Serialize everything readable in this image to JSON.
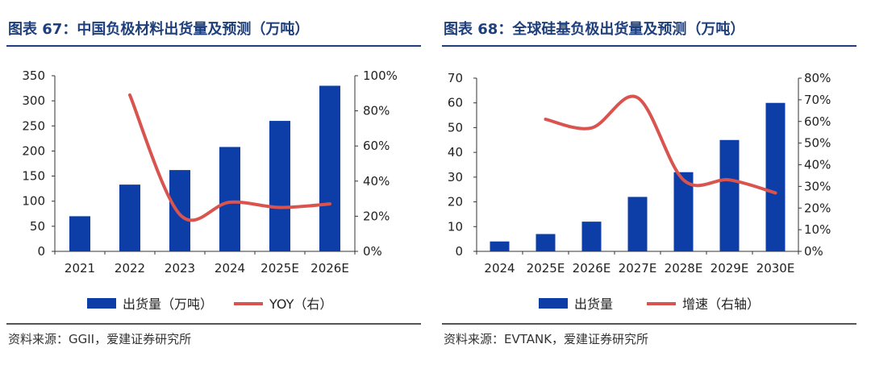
{
  "colors": {
    "bar": "#0d3ea8",
    "line": "#d9534f",
    "title": "#1f3f7a"
  },
  "chart_data": [
    {
      "type": "bar",
      "title": "图表 67：中国负极材料出货量及预测（万吨）",
      "categories": [
        "2021",
        "2022",
        "2023",
        "2024",
        "2025E",
        "2026E"
      ],
      "series": [
        {
          "name": "出货量（万吨）",
          "type": "bar",
          "axis": "left",
          "values": [
            70,
            133,
            162,
            208,
            260,
            330
          ]
        },
        {
          "name": "YOY（右）",
          "type": "line",
          "axis": "right",
          "values": [
            null,
            89,
            21,
            28,
            25,
            27
          ]
        }
      ],
      "yticks_left": [
        "0",
        "50",
        "100",
        "150",
        "200",
        "250",
        "300",
        "350"
      ],
      "yticks_right": [
        "0%",
        "20%",
        "40%",
        "60%",
        "80%",
        "100%"
      ],
      "ylim_left": [
        0,
        350
      ],
      "ylim_right": [
        0,
        100
      ],
      "legend": [
        "出货量（万吨）",
        "YOY（右）"
      ],
      "source": "资料来源：GGII，爱建证券研究所"
    },
    {
      "type": "bar",
      "title": "图表 68：全球硅基负极出货量及预测（万吨）",
      "categories": [
        "2024",
        "2025E",
        "2026E",
        "2027E",
        "2028E",
        "2029E",
        "2030E"
      ],
      "series": [
        {
          "name": "出货量",
          "type": "bar",
          "axis": "left",
          "values": [
            4,
            7,
            12,
            22,
            32,
            45,
            60
          ]
        },
        {
          "name": "增速（右轴）",
          "type": "line",
          "axis": "right",
          "values": [
            null,
            61,
            57,
            71,
            33,
            33,
            27
          ]
        }
      ],
      "yticks_left": [
        "0",
        "10",
        "20",
        "30",
        "40",
        "50",
        "60",
        "70"
      ],
      "yticks_right": [
        "0%",
        "10%",
        "20%",
        "30%",
        "40%",
        "50%",
        "60%",
        "70%",
        "80%"
      ],
      "ylim_left": [
        0,
        70
      ],
      "ylim_right": [
        0,
        80
      ],
      "legend": [
        "出货量",
        "增速（右轴）"
      ],
      "source": "资料来源：EVTANK，爱建证券研究所"
    }
  ]
}
